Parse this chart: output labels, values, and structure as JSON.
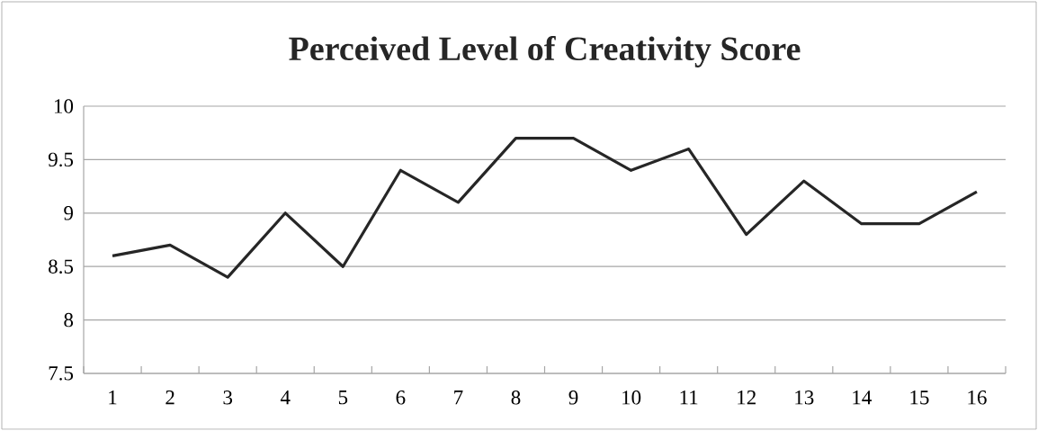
{
  "chart_data": {
    "type": "line",
    "title": "Perceived Level of Creativity Score",
    "categories": [
      "1",
      "2",
      "3",
      "4",
      "5",
      "6",
      "7",
      "8",
      "9",
      "10",
      "11",
      "12",
      "13",
      "14",
      "15",
      "16"
    ],
    "series": [
      {
        "color": "#262626",
        "values": [
          8.6,
          8.7,
          8.4,
          9.0,
          8.5,
          9.4,
          9.1,
          9.7,
          9.7,
          9.4,
          9.6,
          8.8,
          9.3,
          8.9,
          8.9,
          9.2
        ]
      }
    ],
    "ylim": [
      7.5,
      10
    ],
    "yticks": [
      7.5,
      8,
      8.5,
      9,
      9.5,
      10
    ],
    "grid": "y",
    "legend": false,
    "marker": "none",
    "line_style": "solid"
  }
}
